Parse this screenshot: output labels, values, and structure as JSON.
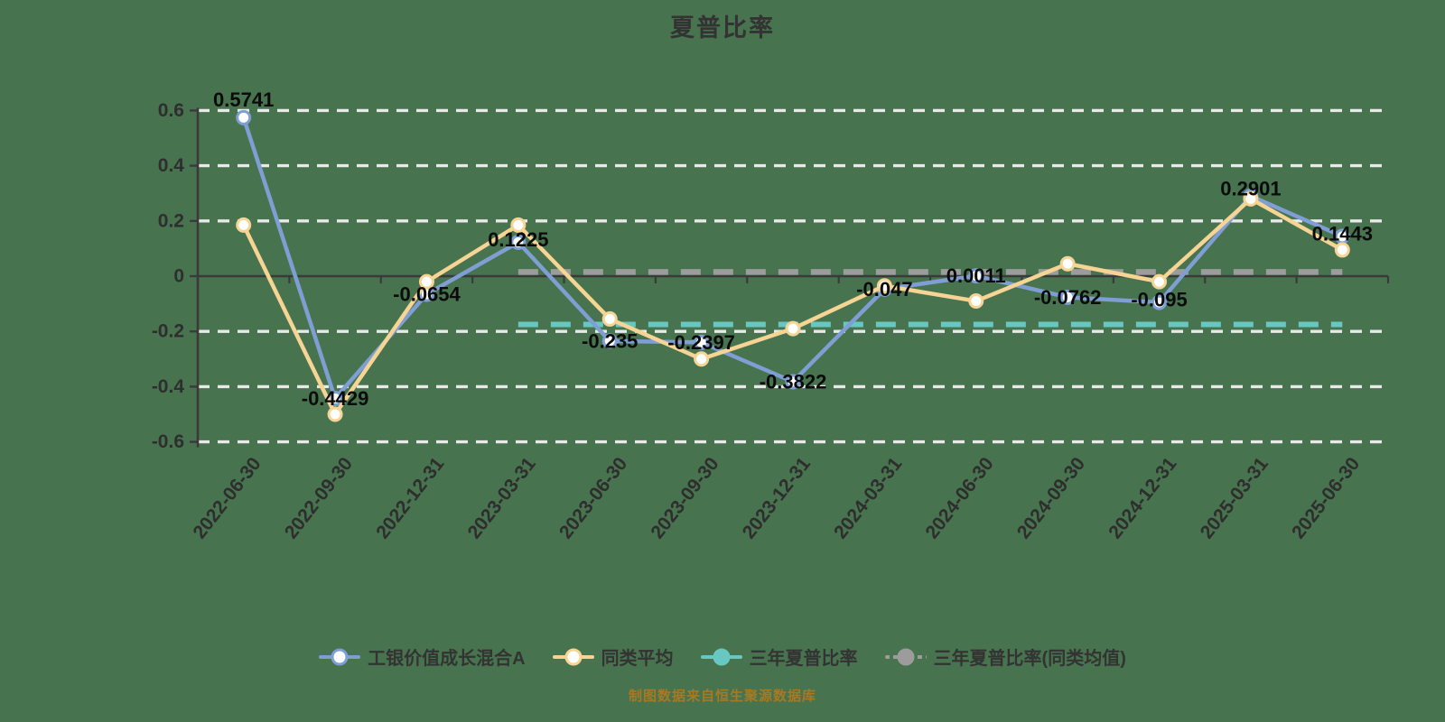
{
  "title": "夏普比率",
  "caption": "制图数据来自恒生聚源数据库",
  "colors": {
    "background": "#48734F",
    "fund": "#7F9FD4",
    "peer": "#F6D494",
    "three_year": "#69C7C1",
    "three_year_peer": "#9C9C9C",
    "grid": "#E9E9E9",
    "axis": "#3A3A3A",
    "tick_label": "#2E2E2E",
    "value_label": "#0B0B0B",
    "title": "#333333",
    "caption": "#B07A1E"
  },
  "legend": [
    {
      "label": "工银价值成长混合A",
      "marker": "hollow-circle",
      "line": "solid",
      "color_key": "fund"
    },
    {
      "label": "同类平均",
      "marker": "hollow-circle",
      "line": "solid",
      "color_key": "peer"
    },
    {
      "label": "三年夏普比率",
      "marker": "solid-circle",
      "line": "solid",
      "color_key": "three_year"
    },
    {
      "label": "三年夏普比率(同类均值)",
      "marker": "solid-circle",
      "line": "dashed",
      "color_key": "three_year_peer"
    }
  ],
  "chart_data": {
    "type": "line",
    "title": "夏普比率",
    "xlabel": "",
    "ylabel": "",
    "ylim": [
      -0.6,
      0.6
    ],
    "ytick_step": 0.2,
    "grid": true,
    "legend_position": "bottom",
    "categories": [
      "2022-06-30",
      "2022-09-30",
      "2022-12-31",
      "2023-03-31",
      "2023-06-30",
      "2023-09-30",
      "2023-12-31",
      "2024-03-31",
      "2024-06-30",
      "2024-09-30",
      "2024-12-31",
      "2025-03-31",
      "2025-06-30"
    ],
    "series": [
      {
        "name": "工银价值成长混合A",
        "values": [
          0.5741,
          -0.4429,
          -0.0654,
          0.1225,
          -0.235,
          -0.2397,
          -0.3822,
          -0.047,
          0.0011,
          -0.0762,
          -0.095,
          0.2901,
          0.1443
        ],
        "labels": [
          "0.5741",
          "-0.4429",
          "-0.0654",
          "0.1225",
          "-0.235",
          "-0.2397",
          "-0.3822",
          "-0.047",
          "0.0011",
          "-0.0762",
          "-0.095",
          "0.2901",
          "0.1443"
        ]
      },
      {
        "name": "同类平均",
        "values": [
          0.185,
          -0.5,
          -0.02,
          0.185,
          -0.155,
          -0.3,
          -0.19,
          -0.035,
          -0.09,
          0.045,
          -0.02,
          0.28,
          0.095
        ]
      }
    ],
    "ref_lines": [
      {
        "name": "三年夏普比率",
        "value": -0.175,
        "from_index": 3,
        "to_index": 12,
        "color_key": "three_year"
      },
      {
        "name": "三年夏普比率(同类均值)",
        "value": 0.015,
        "from_index": 3,
        "to_index": 12,
        "color_key": "three_year_peer"
      }
    ]
  }
}
